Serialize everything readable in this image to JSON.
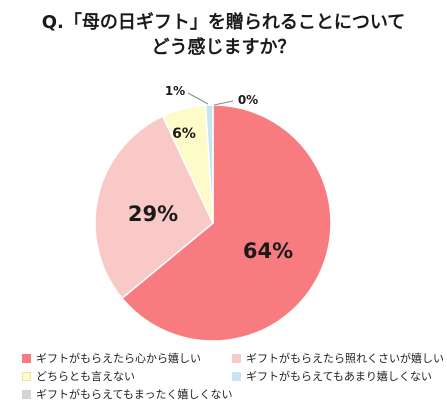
{
  "chart_data": {
    "type": "pie",
    "title_lines": [
      "Q.「母の日ギフト」を贈られることについて",
      "どう感じますか？"
    ],
    "slices": [
      {
        "label": "ギフトがもらえたら心から嬉しい",
        "value": 64,
        "value_label": "64%",
        "color": "#f77b7f"
      },
      {
        "label": "ギフトがもらえたら照れくさいが嬉しい",
        "value": 29,
        "value_label": "29%",
        "color": "#f9c9c7"
      },
      {
        "label": "どちらとも言えない",
        "value": 6,
        "value_label": "6%",
        "color": "#fdfbc7"
      },
      {
        "label": "ギフトがもらえてもあまり嬉しくない",
        "value": 1,
        "value_label": "1%",
        "color": "#c7e4f2"
      },
      {
        "label": "ギフトがもらえてもまったく嬉しくない",
        "value": 0,
        "value_label": "0%",
        "color": "#d4d4d4"
      }
    ],
    "legend_position": "bottom"
  }
}
